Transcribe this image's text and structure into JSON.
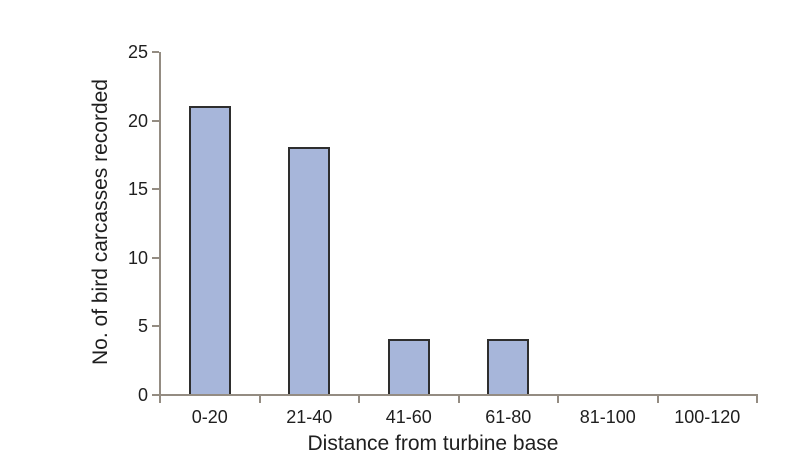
{
  "figure": {
    "background_color": "#ffffff",
    "text_color": "#1f1f1f",
    "axis_color": "#948c82",
    "bar_fill_color": "#a7b6da",
    "bar_border_color": "#2e2e2e"
  },
  "chart_data": {
    "type": "bar",
    "title": "",
    "categories": [
      "0-20",
      "21-40",
      "41-60",
      "61-80",
      "81-100",
      "100-120"
    ],
    "values": [
      21,
      18,
      4,
      4,
      0,
      0
    ],
    "xlabel": "Distance from turbine base",
    "ylabel": "No. of bird carcasses recorded",
    "ylim": [
      0,
      25
    ],
    "yticks": [
      0,
      5,
      10,
      15,
      20,
      25
    ],
    "grid": false,
    "legend_position": "none",
    "bar_gap_ratio": 0.42
  }
}
